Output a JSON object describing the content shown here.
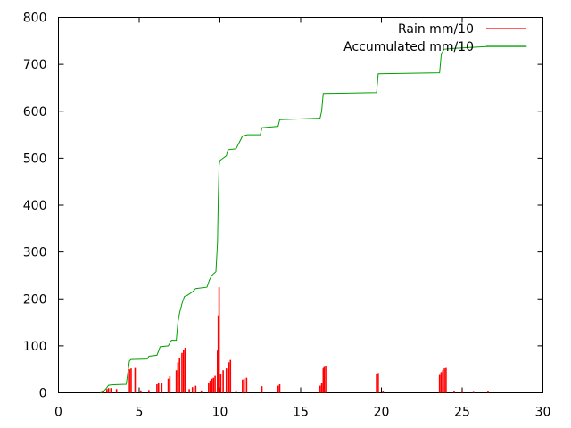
{
  "chart_data": {
    "type": "bar+line",
    "title": "",
    "xlabel": "",
    "ylabel": "",
    "xlim": [
      0,
      30
    ],
    "ylim": [
      0,
      800
    ],
    "grid": false,
    "legend_position": "top-right",
    "x_ticks": [
      "0",
      "5",
      "10",
      "15",
      "20",
      "25",
      "30"
    ],
    "y_ticks": [
      "0",
      "100",
      "200",
      "300",
      "400",
      "500",
      "600",
      "700",
      "800"
    ],
    "colors": {
      "rain": "#ff0000",
      "accumulated": "#00a000",
      "axis": "#000000"
    },
    "series": [
      {
        "name": "Rain mm/10",
        "kind": "impulses",
        "color": "#ff0000",
        "points": [
          [
            2.8,
            3
          ],
          [
            3.0,
            8
          ],
          [
            3.1,
            10
          ],
          [
            3.25,
            10
          ],
          [
            3.6,
            8
          ],
          [
            4.4,
            50
          ],
          [
            4.5,
            52
          ],
          [
            4.75,
            53
          ],
          [
            5.1,
            5
          ],
          [
            5.6,
            6
          ],
          [
            6.1,
            18
          ],
          [
            6.2,
            22
          ],
          [
            6.4,
            20
          ],
          [
            6.8,
            30
          ],
          [
            6.9,
            35
          ],
          [
            7.3,
            48
          ],
          [
            7.4,
            65
          ],
          [
            7.5,
            75
          ],
          [
            7.65,
            85
          ],
          [
            7.75,
            92
          ],
          [
            7.85,
            96
          ],
          [
            8.1,
            8
          ],
          [
            8.3,
            12
          ],
          [
            8.5,
            15
          ],
          [
            8.85,
            5
          ],
          [
            9.3,
            22
          ],
          [
            9.4,
            26
          ],
          [
            9.5,
            30
          ],
          [
            9.6,
            32
          ],
          [
            9.7,
            36
          ],
          [
            9.85,
            90
          ],
          [
            9.9,
            165
          ],
          [
            9.95,
            225
          ],
          [
            10.05,
            40
          ],
          [
            10.2,
            48
          ],
          [
            10.4,
            52
          ],
          [
            10.55,
            65
          ],
          [
            10.65,
            70
          ],
          [
            11.0,
            5
          ],
          [
            11.4,
            28
          ],
          [
            11.5,
            30
          ],
          [
            11.65,
            32
          ],
          [
            12.6,
            14
          ],
          [
            13.6,
            15
          ],
          [
            13.7,
            18
          ],
          [
            16.2,
            15
          ],
          [
            16.3,
            20
          ],
          [
            16.4,
            52
          ],
          [
            16.45,
            55
          ],
          [
            16.55,
            56
          ],
          [
            19.7,
            40
          ],
          [
            19.8,
            42
          ],
          [
            20.1,
            3
          ],
          [
            23.6,
            38
          ],
          [
            23.7,
            44
          ],
          [
            23.8,
            48
          ],
          [
            23.9,
            52
          ],
          [
            24.0,
            53
          ],
          [
            24.5,
            3
          ],
          [
            25.0,
            5
          ],
          [
            25.7,
            2
          ],
          [
            26.6,
            4
          ]
        ]
      },
      {
        "name": "Accumulated mm/10",
        "kind": "line",
        "color": "#00a000",
        "points": [
          [
            2.6,
            0
          ],
          [
            2.8,
            3
          ],
          [
            3.0,
            11
          ],
          [
            3.1,
            16
          ],
          [
            3.3,
            17
          ],
          [
            4.2,
            18
          ],
          [
            4.4,
            68
          ],
          [
            4.5,
            71
          ],
          [
            5.5,
            72
          ],
          [
            5.6,
            78
          ],
          [
            6.1,
            80
          ],
          [
            6.3,
            98
          ],
          [
            6.8,
            100
          ],
          [
            7.0,
            112
          ],
          [
            7.3,
            112
          ],
          [
            7.4,
            150
          ],
          [
            7.5,
            170
          ],
          [
            7.65,
            190
          ],
          [
            7.8,
            205
          ],
          [
            8.0,
            208
          ],
          [
            8.3,
            215
          ],
          [
            8.5,
            222
          ],
          [
            9.2,
            225
          ],
          [
            9.35,
            240
          ],
          [
            9.5,
            250
          ],
          [
            9.75,
            258
          ],
          [
            9.85,
            320
          ],
          [
            9.9,
            420
          ],
          [
            9.95,
            485
          ],
          [
            10.0,
            495
          ],
          [
            10.2,
            500
          ],
          [
            10.4,
            505
          ],
          [
            10.5,
            518
          ],
          [
            11.0,
            520
          ],
          [
            11.4,
            547
          ],
          [
            11.7,
            550
          ],
          [
            12.5,
            550
          ],
          [
            12.6,
            565
          ],
          [
            13.6,
            568
          ],
          [
            13.7,
            582
          ],
          [
            16.2,
            585
          ],
          [
            16.3,
            600
          ],
          [
            16.4,
            638
          ],
          [
            19.7,
            640
          ],
          [
            19.8,
            680
          ],
          [
            23.6,
            682
          ],
          [
            23.7,
            720
          ],
          [
            23.85,
            732
          ],
          [
            24.5,
            734
          ],
          [
            25.0,
            735
          ],
          [
            26.6,
            738
          ],
          [
            29.0,
            738
          ]
        ]
      }
    ]
  }
}
